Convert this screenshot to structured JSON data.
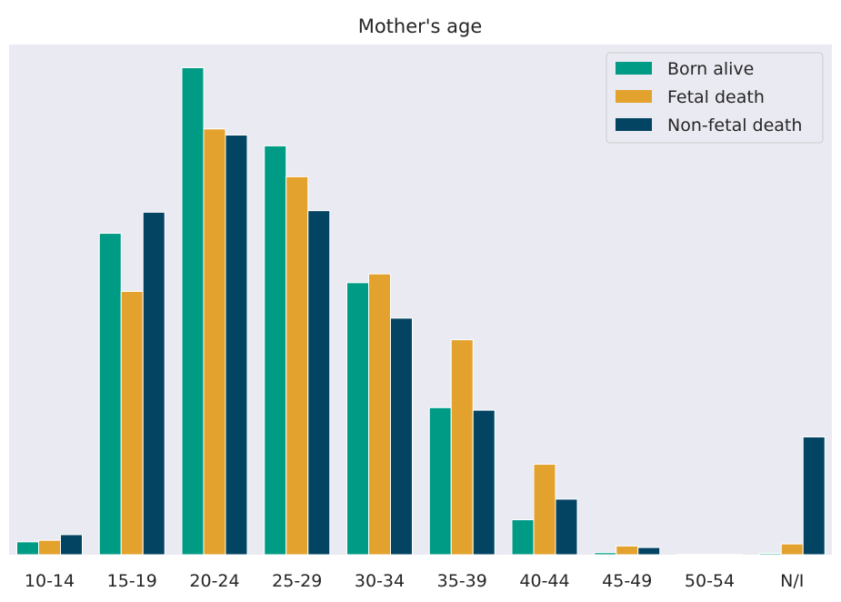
{
  "chart_data": {
    "type": "bar",
    "title": "Mother's age",
    "xlabel": "",
    "ylabel": "",
    "categories": [
      "10-14",
      "15-19",
      "20-24",
      "25-29",
      "30-34",
      "35-39",
      "40-44",
      "45-49",
      "50-54",
      "N/I"
    ],
    "series": [
      {
        "name": "Born alive",
        "color": "#009b85",
        "values": [
          2.5,
          62.5,
          94.7,
          79.5,
          52.9,
          28.6,
          6.8,
          0.4,
          0.05,
          0.25
        ]
      },
      {
        "name": "Fetal death",
        "color": "#e3a22d",
        "values": [
          2.8,
          51.2,
          82.8,
          73.5,
          54.6,
          41.8,
          17.6,
          1.7,
          0.05,
          2.1
        ]
      },
      {
        "name": "Non-fetal death",
        "color": "#034463",
        "values": [
          3.9,
          66.6,
          81.6,
          66.9,
          46.0,
          28.1,
          10.8,
          1.4,
          0.05,
          22.9
        ]
      }
    ],
    "ylim": [
      0,
      99.2
    ],
    "y_ticks_visible": false,
    "grid": false,
    "legend": "top-right",
    "background": "#eaeaf2"
  }
}
